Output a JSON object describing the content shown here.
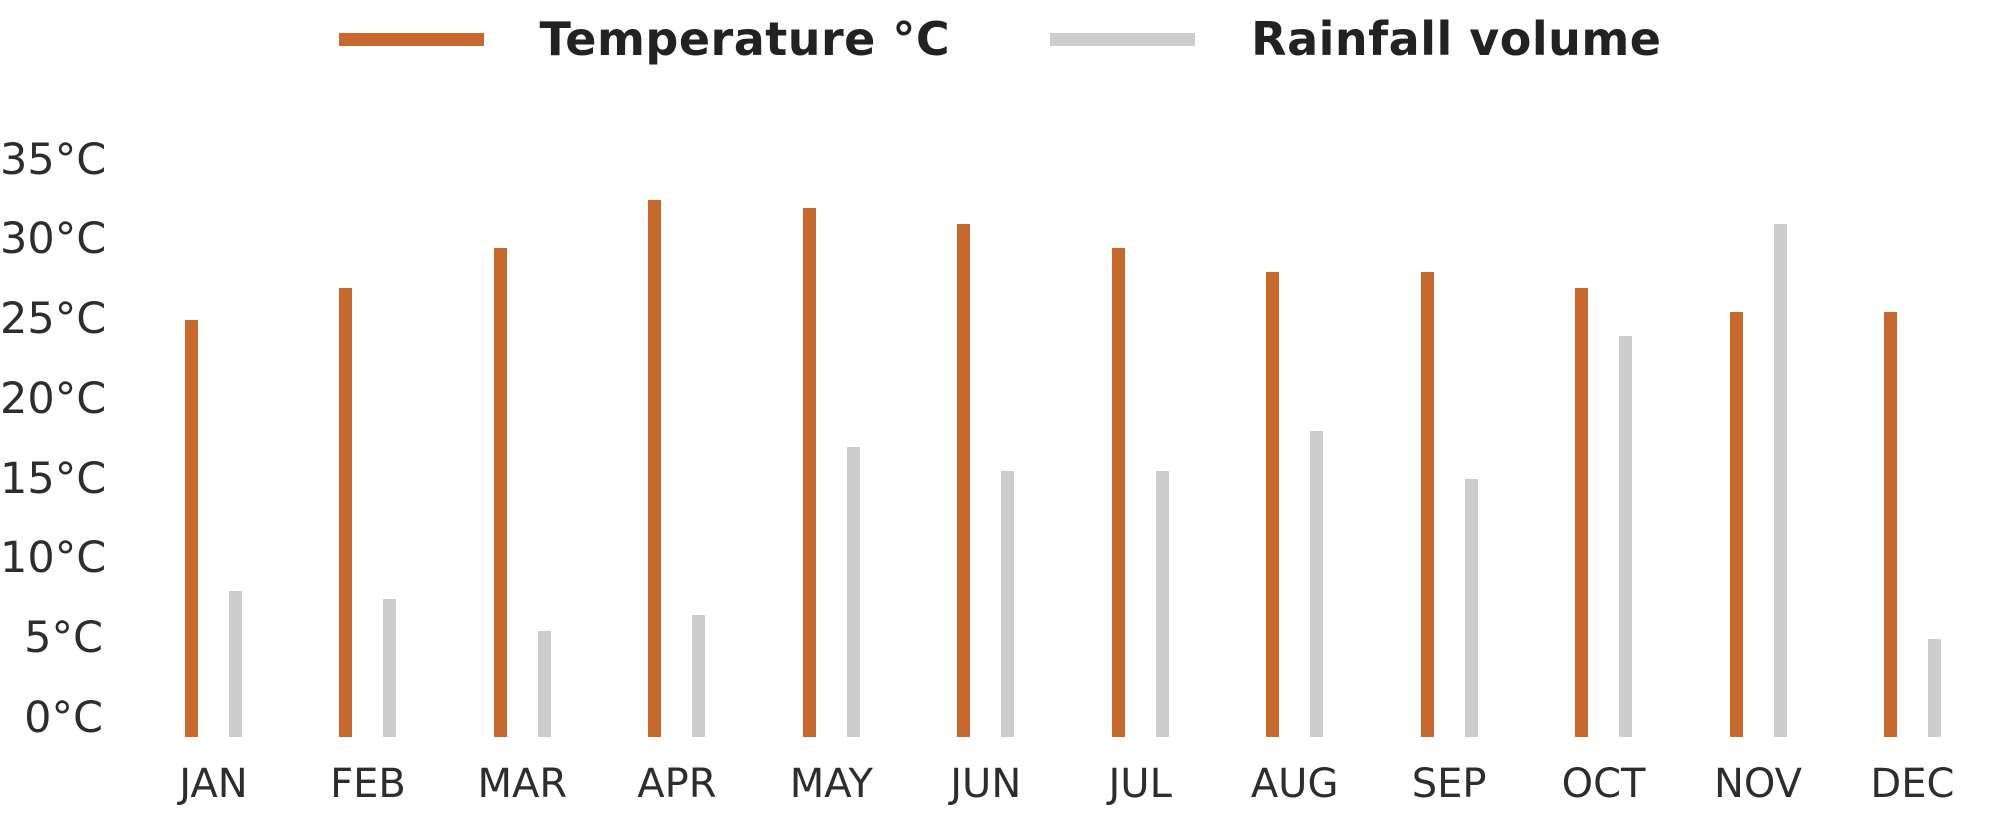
{
  "legend": {
    "items": [
      {
        "label": "Temperature °C",
        "color": "#C7682C"
      },
      {
        "label": "Rainfall volume",
        "color": "#CDCDCD"
      }
    ]
  },
  "chart_data": {
    "type": "bar",
    "title": "",
    "categories": [
      "JAN",
      "FEB",
      "MAR",
      "APR",
      "MAY",
      "JUN",
      "JUL",
      "AUG",
      "SEP",
      "OCT",
      "NOV",
      "DEC"
    ],
    "series": [
      {
        "name": "Temperature °C",
        "color": "#C7682C",
        "values": [
          25,
          27,
          29.5,
          32.5,
          32,
          31,
          29.5,
          28,
          28,
          27,
          25.5,
          25.5
        ]
      },
      {
        "name": "Rainfall volume",
        "color": "#CDCDCD",
        "values": [
          8,
          7.5,
          5.5,
          6.5,
          17,
          15.5,
          15.5,
          18,
          15,
          24,
          31,
          5
        ]
      }
    ],
    "y_axis": {
      "tick_values": [
        0,
        5,
        10,
        15,
        20,
        25,
        30,
        35
      ],
      "tick_labels": [
        "0°C",
        "5°C",
        "10°C",
        "15°C",
        "20°C",
        "25°C",
        "30°C",
        "35°C"
      ],
      "min": 0,
      "max": 35
    },
    "grid": false,
    "legend_position": "top",
    "xlabel": "",
    "ylabel": ""
  }
}
